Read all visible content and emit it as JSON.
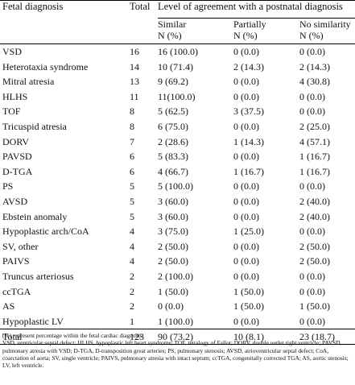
{
  "table": {
    "headers": {
      "fetal_diagnosis": "Fetal diagnosis",
      "total": "Total",
      "agreement": "Level of agreement with a postnatal diagnosis",
      "similar": "Similar",
      "partially": "Partially",
      "no_similarity": "No similarity",
      "unit": "N (%)"
    },
    "rows": [
      {
        "diagnosis": "VSD",
        "total": "16",
        "similar": "16 (100.0)",
        "partially": "0 (0.0)",
        "none": "0 (0.0)"
      },
      {
        "diagnosis": "Heterotaxia syndrome",
        "total": "14",
        "similar": "10 (71.4)",
        "partially": "2 (14.3)",
        "none": "2 (14.3)"
      },
      {
        "diagnosis": "Mitral atresia",
        "total": "13",
        "similar": "9 (69.2)",
        "partially": "0 (0.0)",
        "none": "4 (30.8)"
      },
      {
        "diagnosis": "HLHS",
        "total": "11",
        "similar": "11(100.0)",
        "partially": "0 (0.0)",
        "none": "0 (0.0)"
      },
      {
        "diagnosis": "TOF",
        "total": "8",
        "similar": "5 (62.5)",
        "partially": "3 (37.5)",
        "none": "0 (0.0)"
      },
      {
        "diagnosis": "Tricuspid atresia",
        "total": "8",
        "similar": "6 (75.0)",
        "partially": "0 (0.0)",
        "none": "2 (25.0)"
      },
      {
        "diagnosis": "DORV",
        "total": "7",
        "similar": "2 (28.6)",
        "partially": "1 (14.3)",
        "none": "4 (57.1)"
      },
      {
        "diagnosis": "PAVSD",
        "total": "6",
        "similar": "5 (83.3)",
        "partially": "0 (0.0)",
        "none": "1 (16.7)"
      },
      {
        "diagnosis": "D-TGA",
        "total": "6",
        "similar": "4 (66.7)",
        "partially": "1 (16.7)",
        "none": "1 (16.7)"
      },
      {
        "diagnosis": "PS",
        "total": "5",
        "similar": "5 (100.0)",
        "partially": "0 (0.0)",
        "none": "0 (0.0)"
      },
      {
        "diagnosis": "AVSD",
        "total": "5",
        "similar": "3 (60.0)",
        "partially": "0 (0.0)",
        "none": "2 (40.0)"
      },
      {
        "diagnosis": "Ebstein anomaly",
        "total": "5",
        "similar": "3 (60.0)",
        "partially": "0 (0.0)",
        "none": "2 (40.0)"
      },
      {
        "diagnosis": "Hypoplastic arch/CoA",
        "total": "4",
        "similar": "3 (75.0)",
        "partially": "1 (25.0)",
        "none": "0 (0.0)"
      },
      {
        "diagnosis": "SV, other",
        "total": "4",
        "similar": "2 (50.0)",
        "partially": "0 (0.0)",
        "none": "2 (50.0)"
      },
      {
        "diagnosis": "PAIVS",
        "total": "4",
        "similar": "2 (50.0)",
        "partially": "0 (0.0)",
        "none": "2 (50.0)"
      },
      {
        "diagnosis": "Truncus arteriosus",
        "total": "2",
        "similar": "2 (100.0)",
        "partially": "0 (0.0)",
        "none": "0 (0.0)"
      },
      {
        "diagnosis": "ccTGA",
        "total": "2",
        "similar": "1 (50.0)",
        "partially": "1 (50.0)",
        "none": "0 (0.0)"
      },
      {
        "diagnosis": "AS",
        "total": "2",
        "similar": "0 (0.0)",
        "partially": "1 (50.0)",
        "none": "1 (50.0)"
      },
      {
        "diagnosis": "Hypoplastic LV",
        "total": "1",
        "similar": "1 (100.0)",
        "partially": "0 (0.0)",
        "none": "0 (0.0)"
      }
    ],
    "total_row": {
      "diagnosis": "Total",
      "total": "123",
      "similar": "90 (73.2)",
      "partially": "10 (8.1)",
      "none": "23 (18.7)"
    }
  },
  "footnotes": {
    "percent_note": "(%) represent percentage within the fetal cardiac diagnosis.",
    "abbreviations": "VSD, ventricular septal defect; HLHS, hypoplastic left heart syndrome; TOF, tetralogy of Fallot; DORV, double outlet right ventricle; PAVSD, pulmonary atresia with VSD; D-TGA, D-transposition great arteries; PS, pulmonary stenosis; AVSD, atrioventricular septal defect; CoA, coarctation of aorta; SV, single ventricle; PAIVS, pulmonary atresia with intact septum; ccTGA, congenitally corrected TGA; AS, aortic stenosis; LV, left ventricle."
  }
}
